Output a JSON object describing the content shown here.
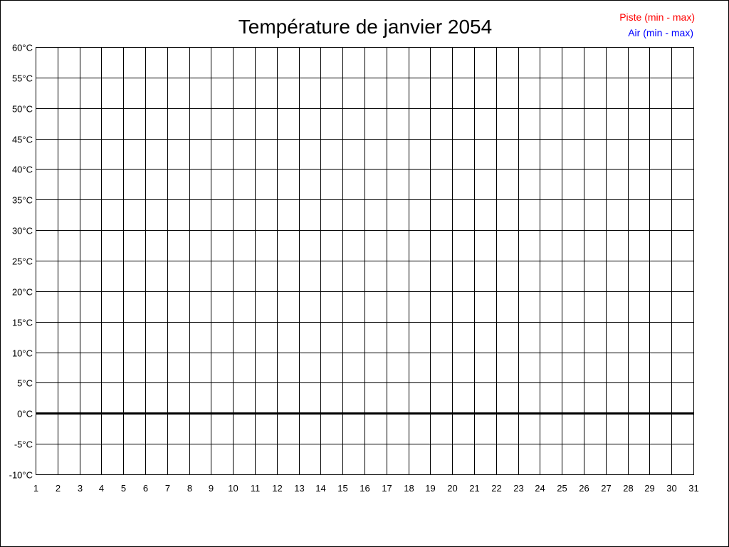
{
  "chart_data": {
    "type": "line",
    "title": "Température de janvier 2054",
    "xlabel": "",
    "ylabel": "",
    "x_ticks": [
      "1",
      "2",
      "3",
      "4",
      "5",
      "6",
      "7",
      "8",
      "9",
      "10",
      "11",
      "12",
      "13",
      "14",
      "15",
      "16",
      "17",
      "18",
      "19",
      "20",
      "21",
      "22",
      "23",
      "24",
      "25",
      "26",
      "27",
      "28",
      "29",
      "30",
      "31"
    ],
    "y_ticks": [
      {
        "value": 60,
        "label": "60°C"
      },
      {
        "value": 55,
        "label": "55°C"
      },
      {
        "value": 50,
        "label": "50°C"
      },
      {
        "value": 45,
        "label": "45°C"
      },
      {
        "value": 40,
        "label": "40°C"
      },
      {
        "value": 35,
        "label": "35°C"
      },
      {
        "value": 30,
        "label": "30°C"
      },
      {
        "value": 25,
        "label": "25°C"
      },
      {
        "value": 20,
        "label": "20°C"
      },
      {
        "value": 15,
        "label": "15°C"
      },
      {
        "value": 10,
        "label": "10°C"
      },
      {
        "value": 5,
        "label": "5°C"
      },
      {
        "value": 0,
        "label": "0°C"
      },
      {
        "value": -5,
        "label": "-5°C"
      },
      {
        "value": -10,
        "label": "-10°C"
      }
    ],
    "xlim": [
      1,
      31
    ],
    "ylim": [
      -10,
      60
    ],
    "grid": true,
    "legend_position": "top-right",
    "series": [
      {
        "name": "Piste (min - max)",
        "color": "#ff0000",
        "values": []
      },
      {
        "name": "Air (min - max)",
        "color": "#0000ff",
        "values": []
      }
    ]
  }
}
